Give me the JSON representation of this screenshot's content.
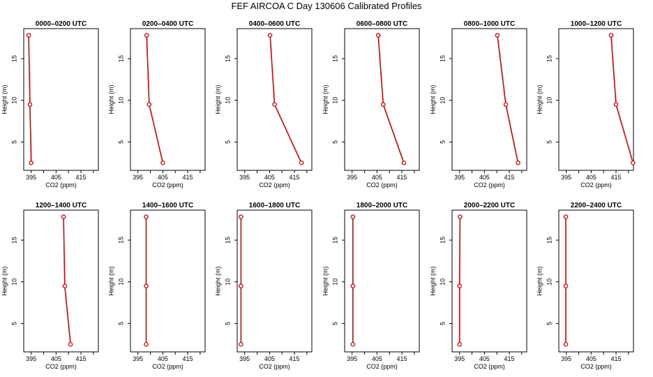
{
  "title": "FEF AIRCOA C  Day 130606  Calibrated Profiles",
  "chart_data": {
    "type": "line",
    "xlabel": "CO2 (ppm)",
    "ylabel": "Height (m)",
    "xlim": [
      392,
      422
    ],
    "ylim": [
      1.6,
      18.6
    ],
    "xticks": [
      "395",
      "405",
      "415"
    ],
    "yticks": [
      "5",
      "10",
      "15"
    ],
    "heights": [
      2.5,
      9.5,
      17.8
    ],
    "line_color": "#dd0000",
    "panels": [
      {
        "title": "0000–0200 UTC",
        "co2": [
          395.0,
          394.5,
          394.0
        ]
      },
      {
        "title": "0200–0400 UTC",
        "co2": [
          405.0,
          399.5,
          398.5
        ]
      },
      {
        "title": "0400–0600 UTC",
        "co2": [
          417.8,
          407.0,
          405.2
        ]
      },
      {
        "title": "0600–0800 UTC",
        "co2": [
          415.8,
          407.5,
          405.5
        ]
      },
      {
        "title": "0800–1000 UTC",
        "co2": [
          418.5,
          413.6,
          410.2
        ]
      },
      {
        "title": "1000–1200 UTC",
        "co2": [
          421.8,
          415.0,
          413.0
        ]
      },
      {
        "title": "1200–1400 UTC",
        "co2": [
          410.8,
          408.5,
          408.0
        ]
      },
      {
        "title": "1400–1600 UTC",
        "co2": [
          398.3,
          398.3,
          398.3
        ]
      },
      {
        "title": "1600–1800 UTC",
        "co2": [
          393.5,
          393.5,
          393.5
        ]
      },
      {
        "title": "1800–2000 UTC",
        "co2": [
          395.3,
          395.3,
          395.3
        ]
      },
      {
        "title": "2000–2200 UTC",
        "co2": [
          395.0,
          395.0,
          395.2
        ]
      },
      {
        "title": "2200–2400 UTC",
        "co2": [
          394.8,
          394.8,
          394.8
        ]
      }
    ]
  }
}
